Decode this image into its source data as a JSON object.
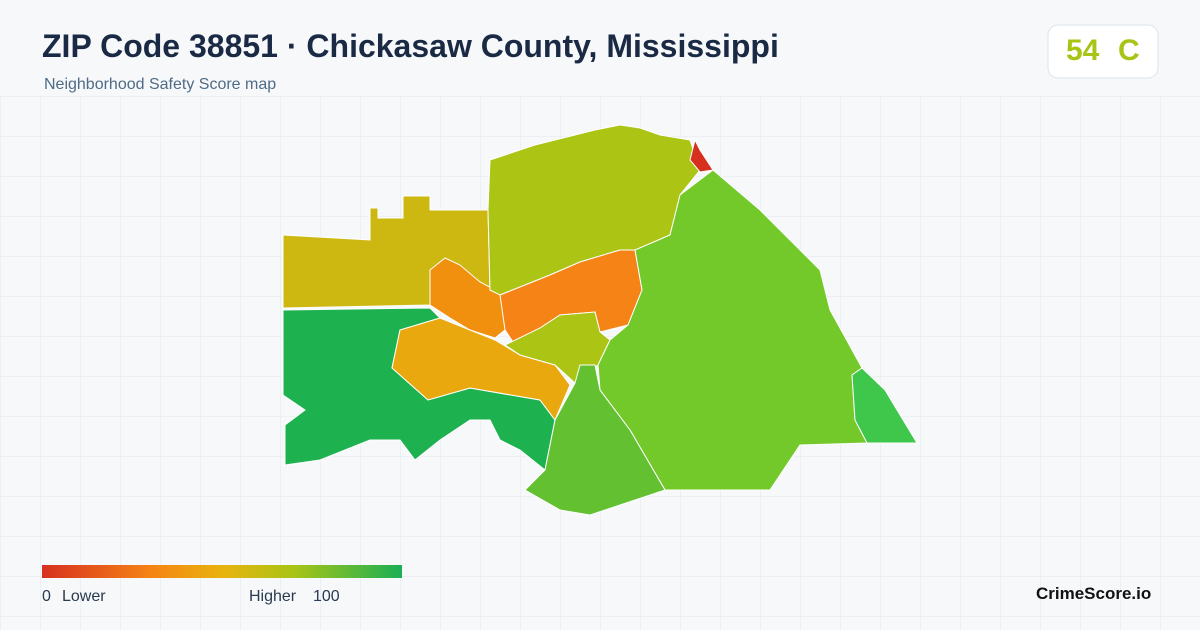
{
  "header": {
    "title": "ZIP Code 38851 · Chickasaw County, Mississippi",
    "subtitle": "Neighborhood Safety Score map"
  },
  "score": {
    "value": 54,
    "grade": "C"
  },
  "legend": {
    "min": 0,
    "min_label": "Lower",
    "max_label": "Higher",
    "max": 100
  },
  "brand": "CrimeScore.io"
}
